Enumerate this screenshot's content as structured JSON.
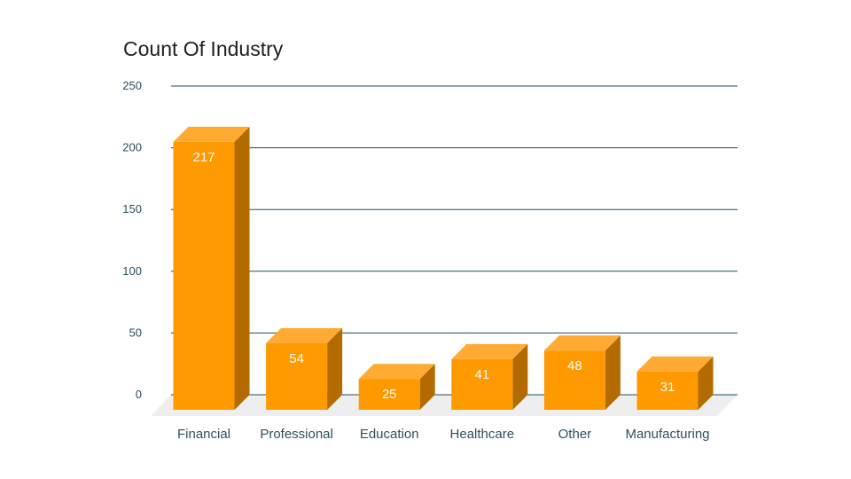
{
  "chart_data": {
    "type": "bar",
    "title": "Count Of Industry",
    "xlabel": "",
    "ylabel": "",
    "categories": [
      "Financial",
      "Professional",
      "Education",
      "Healthcare",
      "Other",
      "Manufacturing"
    ],
    "values": [
      217,
      54,
      25,
      41,
      48,
      31
    ],
    "value_labels": [
      "217",
      "54",
      "25",
      "41",
      "48",
      "31"
    ],
    "ylim": [
      0,
      250
    ],
    "yticks": [
      0,
      50,
      100,
      150,
      200,
      250
    ],
    "ytick_labels": [
      "0",
      "50",
      "100",
      "150",
      "200",
      "250"
    ],
    "grid": true,
    "three_d": true,
    "colors": {
      "bar_front": "#ff9900",
      "bar_top": "#ffaa33",
      "bar_side": "#b36b00",
      "gridline": "#1f4e5f",
      "floor": "#eeeeee"
    }
  }
}
